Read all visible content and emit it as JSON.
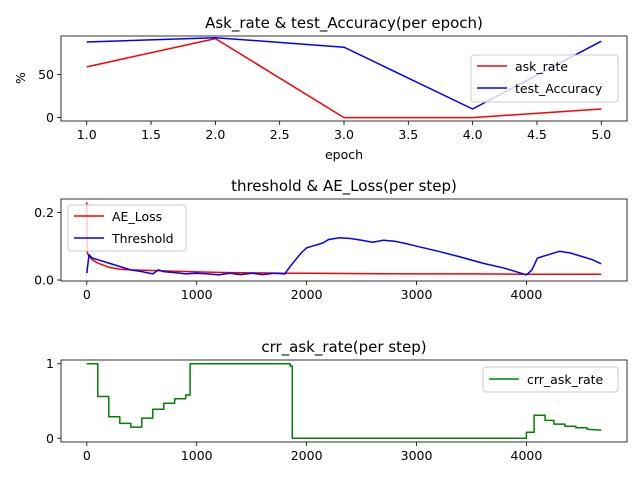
{
  "chart_data": [
    {
      "type": "line",
      "title": "Ask_rate & test_Accuracy(per epoch)",
      "xlabel": "epoch",
      "ylabel": "%",
      "xlim": [
        0.8,
        5.2
      ],
      "ylim": [
        -4,
        95
      ],
      "xticks": [
        1.0,
        1.5,
        2.0,
        2.5,
        3.0,
        3.5,
        4.0,
        4.5,
        5.0
      ],
      "xtick_labels": [
        "1.0",
        "1.5",
        "2.0",
        "2.5",
        "3.0",
        "3.5",
        "4.0",
        "4.5",
        "5.0"
      ],
      "yticks": [
        0,
        50
      ],
      "ytick_labels": [
        "0",
        "50"
      ],
      "grid": false,
      "legend_position": "right",
      "series": [
        {
          "name": "ask_rate",
          "color": "#ff0000",
          "x": [
            1,
            2,
            3,
            4,
            5
          ],
          "y": [
            59,
            92,
            0,
            0,
            10
          ]
        },
        {
          "name": "test_Accuracy",
          "color": "#0000ff",
          "x": [
            1,
            2,
            3,
            4,
            5
          ],
          "y": [
            88,
            93,
            82,
            10,
            89
          ]
        }
      ]
    },
    {
      "type": "line",
      "title": "threshold & AE_Loss(per step)",
      "xlabel": "",
      "ylabel": "",
      "xlim": [
        -235,
        4915
      ],
      "ylim": [
        -0.003,
        0.24
      ],
      "xticks": [
        0,
        1000,
        2000,
        3000,
        4000
      ],
      "xtick_labels": [
        "0",
        "1000",
        "2000",
        "3000",
        "4000"
      ],
      "yticks": [
        0.0,
        0.2
      ],
      "ytick_labels": [
        "0.0",
        "0.2"
      ],
      "grid": false,
      "legend_position": "top-left",
      "series": [
        {
          "name": "AE_Loss",
          "color": "#ff0000",
          "x": [
            0,
            5,
            20,
            50,
            100,
            200,
            300,
            400,
            600,
            800,
            1000,
            1300,
            1600,
            1800,
            2000,
            2500,
            3000,
            3500,
            4000,
            4680
          ],
          "y": [
            0.23,
            0.08,
            0.07,
            0.06,
            0.05,
            0.038,
            0.032,
            0.03,
            0.028,
            0.026,
            0.024,
            0.022,
            0.021,
            0.02,
            0.02,
            0.019,
            0.018,
            0.018,
            0.017,
            0.017
          ]
        },
        {
          "name": "Threshold",
          "color": "#0000ff",
          "x": [
            0,
            20,
            50,
            100,
            200,
            300,
            400,
            500,
            600,
            650,
            700,
            800,
            900,
            1000,
            1100,
            1200,
            1300,
            1400,
            1500,
            1600,
            1700,
            1800,
            1850,
            1900,
            1950,
            2000,
            2050,
            2100,
            2150,
            2200,
            2300,
            2400,
            2500,
            2600,
            2700,
            2800,
            2900,
            3000,
            3200,
            3400,
            3600,
            3800,
            4000,
            4050,
            4100,
            4200,
            4300,
            4400,
            4500,
            4600,
            4680
          ],
          "y": [
            0.02,
            0.075,
            0.065,
            0.06,
            0.05,
            0.04,
            0.03,
            0.025,
            0.018,
            0.03,
            0.025,
            0.022,
            0.018,
            0.02,
            0.018,
            0.015,
            0.02,
            0.016,
            0.02,
            0.016,
            0.02,
            0.018,
            0.04,
            0.06,
            0.08,
            0.095,
            0.1,
            0.105,
            0.11,
            0.12,
            0.125,
            0.123,
            0.118,
            0.112,
            0.118,
            0.115,
            0.108,
            0.1,
            0.085,
            0.068,
            0.05,
            0.035,
            0.015,
            0.03,
            0.065,
            0.075,
            0.085,
            0.08,
            0.07,
            0.06,
            0.048
          ]
        }
      ]
    },
    {
      "type": "line",
      "title": "crr_ask_rate(per step)",
      "xlabel": "",
      "ylabel": "",
      "xlim": [
        -235,
        4915
      ],
      "ylim": [
        -0.05,
        1.05
      ],
      "xticks": [
        0,
        1000,
        2000,
        3000,
        4000
      ],
      "xtick_labels": [
        "0",
        "1000",
        "2000",
        "3000",
        "4000"
      ],
      "yticks": [
        0,
        1
      ],
      "ytick_labels": [
        "0",
        "1"
      ],
      "grid": false,
      "legend_position": "top-right",
      "series": [
        {
          "name": "crr_ask_rate",
          "color": "#008000",
          "x": [
            0,
            100,
            100,
            200,
            200,
            300,
            300,
            400,
            400,
            500,
            500,
            600,
            600,
            700,
            700,
            800,
            800,
            900,
            900,
            940,
            940,
            1850,
            1850,
            1870,
            1870,
            4000,
            4000,
            4070,
            4070,
            4170,
            4170,
            4250,
            4250,
            4350,
            4350,
            4450,
            4450,
            4550,
            4550,
            4680
          ],
          "y": [
            1,
            1,
            0.56,
            0.56,
            0.29,
            0.29,
            0.2,
            0.2,
            0.15,
            0.15,
            0.27,
            0.27,
            0.39,
            0.39,
            0.47,
            0.47,
            0.53,
            0.53,
            0.58,
            0.58,
            1.0,
            1.0,
            0.97,
            0.97,
            0.0,
            0.0,
            0.08,
            0.08,
            0.31,
            0.31,
            0.24,
            0.24,
            0.19,
            0.19,
            0.16,
            0.16,
            0.14,
            0.14,
            0.12,
            0.11
          ]
        }
      ]
    }
  ]
}
